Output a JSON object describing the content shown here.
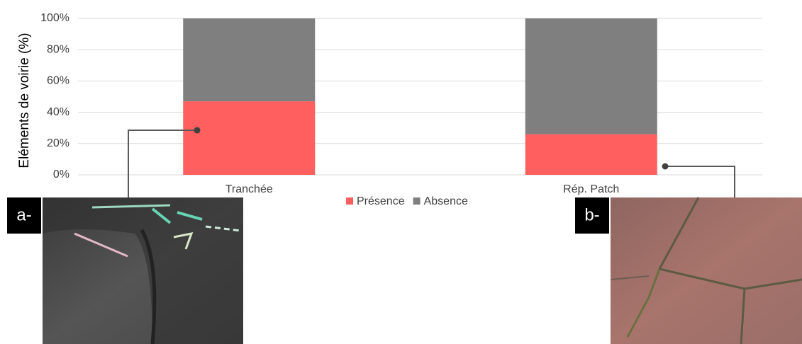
{
  "chart_data": {
    "type": "stacked_bar",
    "y_label": "Eléments de voirie (%)",
    "categories": [
      "Tranchée",
      "Rép. Patch"
    ],
    "series": [
      {
        "name": "Présence",
        "color": "#ff5f5f",
        "values": [
          47,
          26
        ]
      },
      {
        "name": "Absence",
        "color": "#7f7f7f",
        "values": [
          53,
          74
        ]
      }
    ],
    "ylim": [
      0,
      100
    ],
    "yticks": [
      {
        "value": 0,
        "label": "0%"
      },
      {
        "value": 20,
        "label": "20%"
      },
      {
        "value": 40,
        "label": "40%"
      },
      {
        "value": 60,
        "label": "60%"
      },
      {
        "value": 80,
        "label": "80%"
      },
      {
        "value": 100,
        "label": "100%"
      }
    ],
    "grid": true,
    "legend": "bottom",
    "photo_labels": [
      "a-",
      "b-"
    ]
  }
}
